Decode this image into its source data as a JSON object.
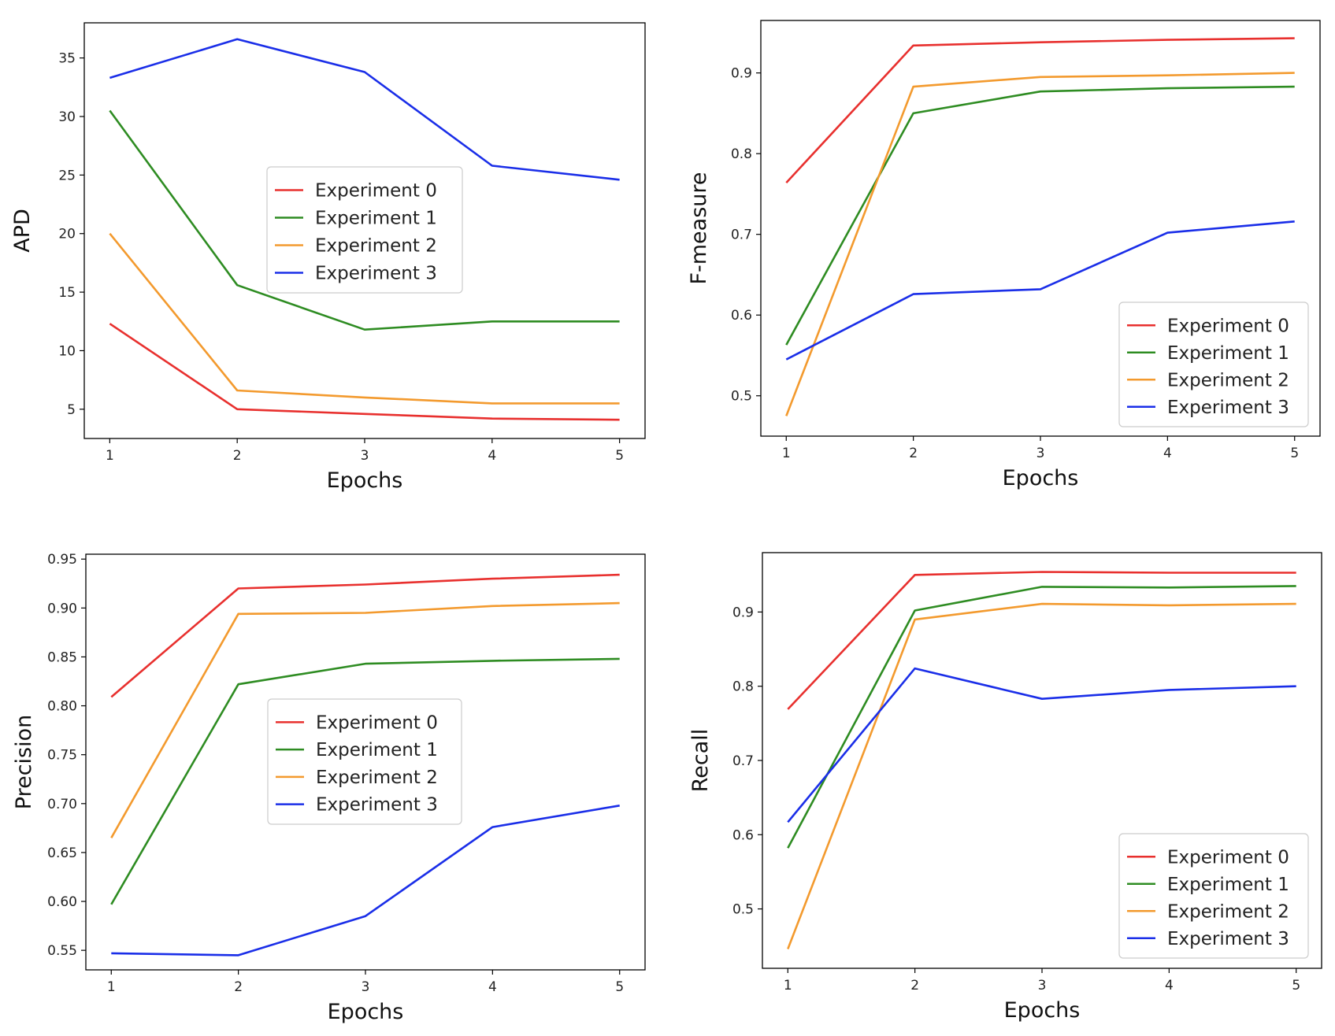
{
  "chart_data": [
    {
      "type": "line",
      "name": "apd",
      "x": [
        1,
        2,
        3,
        4,
        5
      ],
      "xlabel": "Epochs",
      "ylabel": "APD",
      "xlim": [
        0.8,
        5.2
      ],
      "ylim": [
        2.5,
        38.0
      ],
      "xticks": [
        "1",
        "2",
        "3",
        "4",
        "5"
      ],
      "yticks": [
        5,
        10,
        15,
        20,
        25,
        30,
        35
      ],
      "ytick_labels": [
        "5",
        "10",
        "15",
        "20",
        "25",
        "30",
        "35"
      ],
      "legend_position": "center",
      "series": [
        {
          "name": "Experiment 0",
          "color": "#e8302e",
          "values": [
            12.3,
            5.0,
            4.6,
            4.2,
            4.1
          ]
        },
        {
          "name": "Experiment 1",
          "color": "#2e8c22",
          "values": [
            30.5,
            15.6,
            11.8,
            12.5,
            12.5
          ]
        },
        {
          "name": "Experiment 2",
          "color": "#f39a2e",
          "values": [
            20.0,
            6.6,
            6.0,
            5.5,
            5.5
          ]
        },
        {
          "name": "Experiment 3",
          "color": "#1a2ee8",
          "values": [
            33.3,
            36.6,
            33.8,
            25.8,
            24.6
          ]
        }
      ]
    },
    {
      "type": "line",
      "name": "f-measure",
      "x": [
        1,
        2,
        3,
        4,
        5
      ],
      "xlabel": "Epochs",
      "ylabel": "F-measure",
      "xlim": [
        0.8,
        5.2
      ],
      "ylim": [
        0.45,
        0.965
      ],
      "xticks": [
        "1",
        "2",
        "3",
        "4",
        "5"
      ],
      "yticks": [
        0.5,
        0.6,
        0.7,
        0.8,
        0.9
      ],
      "ytick_labels": [
        "0.5",
        "0.6",
        "0.7",
        "0.8",
        "0.9"
      ],
      "legend_position": "lower right",
      "series": [
        {
          "name": "Experiment 0",
          "color": "#e8302e",
          "values": [
            0.764,
            0.934,
            0.938,
            0.941,
            0.943
          ]
        },
        {
          "name": "Experiment 1",
          "color": "#2e8c22",
          "values": [
            0.563,
            0.85,
            0.877,
            0.881,
            0.883
          ]
        },
        {
          "name": "Experiment 2",
          "color": "#f39a2e",
          "values": [
            0.475,
            0.883,
            0.895,
            0.897,
            0.9
          ]
        },
        {
          "name": "Experiment 3",
          "color": "#1a2ee8",
          "values": [
            0.545,
            0.626,
            0.632,
            0.702,
            0.716
          ]
        }
      ]
    },
    {
      "type": "line",
      "name": "precision",
      "x": [
        1,
        2,
        3,
        4,
        5
      ],
      "xlabel": "Epochs",
      "ylabel": "Precision",
      "xlim": [
        0.8,
        5.2
      ],
      "ylim": [
        0.53,
        0.955
      ],
      "xticks": [
        "1",
        "2",
        "3",
        "4",
        "5"
      ],
      "yticks": [
        0.55,
        0.6,
        0.65,
        0.7,
        0.75,
        0.8,
        0.85,
        0.9,
        0.95
      ],
      "ytick_labels": [
        "0.55",
        "0.60",
        "0.65",
        "0.70",
        "0.75",
        "0.80",
        "0.85",
        "0.90",
        "0.95"
      ],
      "legend_position": "center",
      "series": [
        {
          "name": "Experiment 0",
          "color": "#e8302e",
          "values": [
            0.809,
            0.92,
            0.924,
            0.93,
            0.934
          ]
        },
        {
          "name": "Experiment 1",
          "color": "#2e8c22",
          "values": [
            0.597,
            0.822,
            0.843,
            0.846,
            0.848
          ]
        },
        {
          "name": "Experiment 2",
          "color": "#f39a2e",
          "values": [
            0.665,
            0.894,
            0.895,
            0.902,
            0.905
          ]
        },
        {
          "name": "Experiment 3",
          "color": "#1a2ee8",
          "values": [
            0.547,
            0.545,
            0.585,
            0.676,
            0.698
          ]
        }
      ]
    },
    {
      "type": "line",
      "name": "recall",
      "x": [
        1,
        2,
        3,
        4,
        5
      ],
      "xlabel": "Epochs",
      "ylabel": "Recall",
      "xlim": [
        0.8,
        5.2
      ],
      "ylim": [
        0.42,
        0.98
      ],
      "xticks": [
        "1",
        "2",
        "3",
        "4",
        "5"
      ],
      "yticks": [
        0.5,
        0.6,
        0.7,
        0.8,
        0.9
      ],
      "ytick_labels": [
        "0.5",
        "0.6",
        "0.7",
        "0.8",
        "0.9"
      ],
      "legend_position": "lower right",
      "series": [
        {
          "name": "Experiment 0",
          "color": "#e8302e",
          "values": [
            0.769,
            0.95,
            0.954,
            0.953,
            0.953
          ]
        },
        {
          "name": "Experiment 1",
          "color": "#2e8c22",
          "values": [
            0.582,
            0.902,
            0.934,
            0.933,
            0.935
          ]
        },
        {
          "name": "Experiment 2",
          "color": "#f39a2e",
          "values": [
            0.446,
            0.89,
            0.911,
            0.909,
            0.911
          ]
        },
        {
          "name": "Experiment 3",
          "color": "#1a2ee8",
          "values": [
            0.617,
            0.824,
            0.783,
            0.795,
            0.8
          ]
        }
      ]
    }
  ]
}
